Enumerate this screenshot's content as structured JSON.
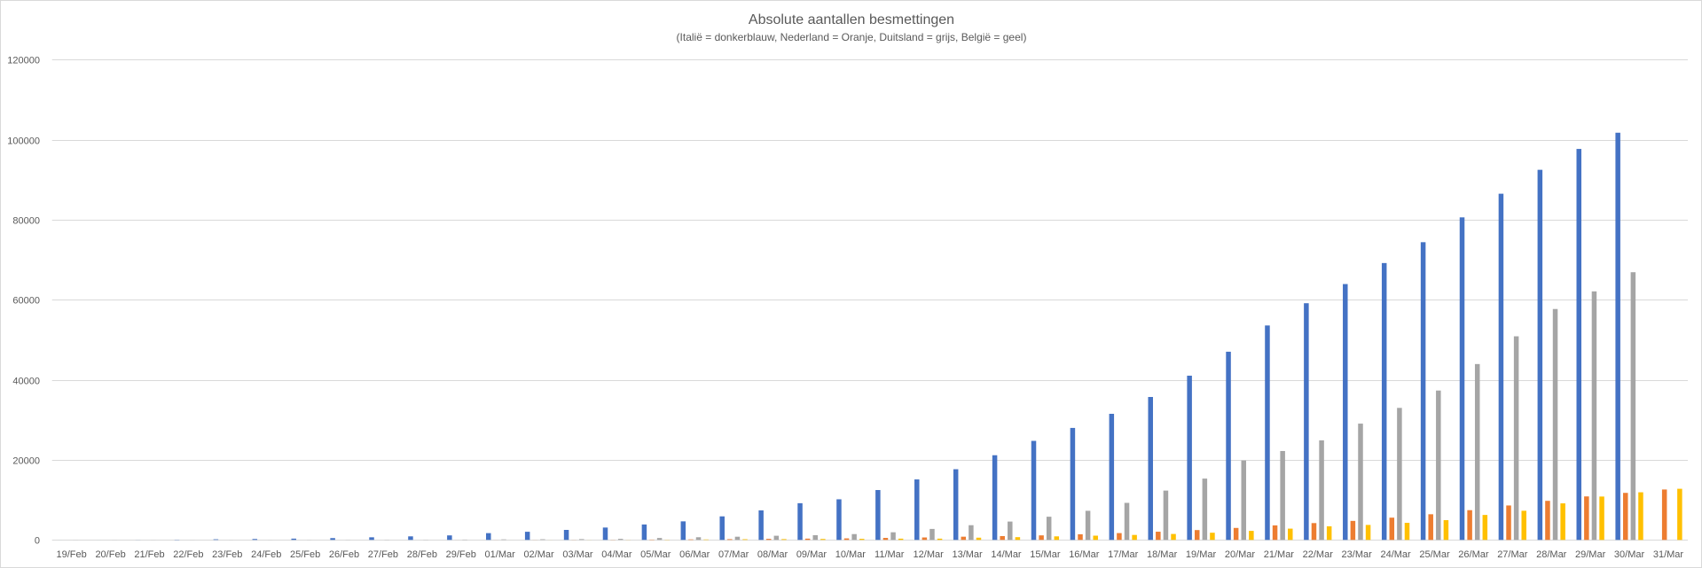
{
  "chart_data": {
    "type": "bar",
    "title": "Absolute aantallen besmettingen",
    "subtitle": "(Italië = donkerblauw, Nederland = Oranje, Duitsland = grijs, België = geel)",
    "ylim": [
      0,
      120000
    ],
    "yticks": [
      0,
      20000,
      40000,
      60000,
      80000,
      100000,
      120000
    ],
    "grid": true,
    "categories": [
      "19/Feb",
      "20/Feb",
      "21/Feb",
      "22/Feb",
      "23/Feb",
      "24/Feb",
      "25/Feb",
      "26/Feb",
      "27/Feb",
      "28/Feb",
      "29/Feb",
      "01/Mar",
      "02/Mar",
      "03/Mar",
      "04/Mar",
      "05/Mar",
      "06/Mar",
      "07/Mar",
      "08/Mar",
      "09/Mar",
      "10/Mar",
      "11/Mar",
      "12/Mar",
      "13/Mar",
      "14/Mar",
      "15/Mar",
      "16/Mar",
      "17/Mar",
      "18/Mar",
      "19/Mar",
      "20/Mar",
      "21/Mar",
      "22/Mar",
      "23/Mar",
      "24/Mar",
      "25/Mar",
      "26/Mar",
      "27/Mar",
      "28/Mar",
      "29/Mar",
      "30/Mar",
      "31/Mar"
    ],
    "series": [
      {
        "color": "#4472C4",
        "values": [
          3,
          3,
          20,
          62,
          155,
          229,
          322,
          453,
          655,
          888,
          1128,
          1694,
          2036,
          2502,
          3089,
          3858,
          4636,
          5883,
          7375,
          9172,
          10149,
          12462,
          15113,
          17660,
          21157,
          24747,
          27980,
          31506,
          35713,
          41035,
          47021,
          53578,
          59138,
          63927,
          69176,
          74386,
          80589,
          86498,
          92472,
          97689,
          101739,
          null
        ]
      },
      {
        "color": "#ED7D31",
        "values": [
          0,
          0,
          0,
          0,
          0,
          0,
          0,
          0,
          1,
          1,
          6,
          10,
          18,
          24,
          38,
          82,
          128,
          188,
          265,
          321,
          382,
          503,
          614,
          804,
          959,
          1135,
          1413,
          1705,
          2051,
          2460,
          2994,
          3631,
          4204,
          4749,
          5560,
          6412,
          7431,
          8603,
          9762,
          10866,
          11750,
          12595
        ]
      },
      {
        "color": "#A5A5A5",
        "values": [
          16,
          16,
          16,
          16,
          16,
          16,
          17,
          27,
          46,
          48,
          79,
          130,
          159,
          196,
          262,
          482,
          670,
          799,
          1040,
          1176,
          1457,
          1908,
          2745,
          3675,
          4585,
          5795,
          7272,
          9257,
          12327,
          15320,
          19848,
          22213,
          24873,
          29056,
          32986,
          37323,
          43938,
          50871,
          57695,
          62095,
          66885,
          null
        ]
      },
      {
        "color": "#FFC000",
        "values": [
          1,
          1,
          1,
          1,
          1,
          1,
          1,
          1,
          1,
          1,
          1,
          2,
          8,
          13,
          23,
          50,
          109,
          169,
          200,
          239,
          267,
          314,
          314,
          559,
          689,
          886,
          1058,
          1243,
          1486,
          1795,
          2257,
          2815,
          3401,
          3743,
          4269,
          4937,
          6235,
          7284,
          9134,
          10836,
          11899,
          12775
        ]
      }
    ]
  }
}
